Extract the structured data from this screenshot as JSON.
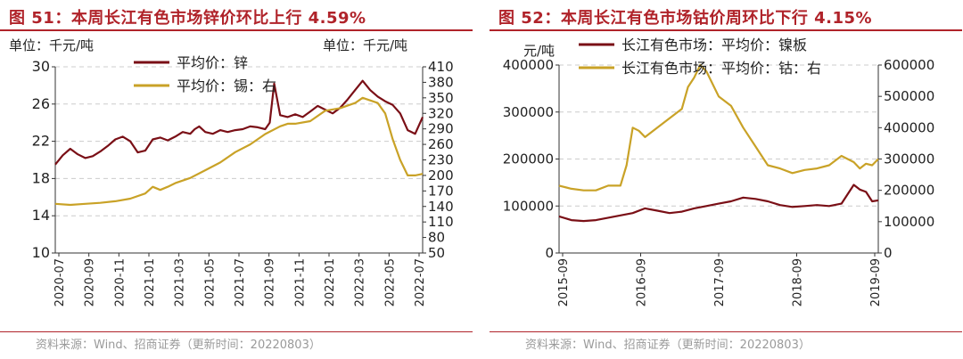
{
  "left": {
    "title": "图 51：本周长江有色市场锌价环比上行 4.59%",
    "unit_left": "单位：千元/吨",
    "unit_right": "单位：千元/吨",
    "source": "资料来源：Wind、招商证券（更新时间：20220803）"
  },
  "right": {
    "title": "图 52：本周长江有色市场钴价周环比下行 4.15%",
    "unit_left": "元/吨",
    "source": "资料来源：Wind、招商证券（更新时间：20220803）"
  },
  "colors": {
    "dark": "#7a0f16",
    "gold": "#c9a227",
    "title": "#b0232a"
  },
  "chart_data": [
    {
      "type": "line",
      "x_ticks": [
        "2020-07",
        "2020-09",
        "2020-11",
        "2021-01",
        "2021-03",
        "2021-05",
        "2021-07",
        "2021-09",
        "2021-11",
        "2022-01",
        "2022-03",
        "2022-05",
        "2022-07"
      ],
      "y_left": {
        "range": [
          10,
          30
        ],
        "ticks": [
          10,
          14,
          18,
          22,
          26,
          30
        ]
      },
      "y_right": {
        "range": [
          50,
          410
        ],
        "ticks": [
          50,
          80,
          110,
          140,
          170,
          200,
          230,
          260,
          290,
          320,
          350,
          380,
          410
        ]
      },
      "legend_position": "top-left",
      "series": [
        {
          "name": "平均价：锌",
          "axis": "left",
          "color": "#7a0f16",
          "x": [
            0,
            0.5,
            1,
            1.5,
            2,
            2.5,
            3,
            3.5,
            4,
            4.5,
            5,
            5.5,
            6,
            6.5,
            7,
            7.5,
            8,
            8.5,
            9,
            9.3,
            9.6,
            10,
            10.5,
            11,
            11.5,
            12,
            12.5,
            13,
            13.5,
            14,
            14.3,
            14.6,
            15,
            15.5,
            16,
            16.5,
            17,
            17.5,
            18,
            18.5,
            19,
            19.5,
            20,
            20.5,
            21,
            21.5,
            22,
            22.5,
            23,
            23.5,
            24,
            24.5
          ],
          "y": [
            19.5,
            20.5,
            21.2,
            20.6,
            20.2,
            20.4,
            20.9,
            21.5,
            22.2,
            22.5,
            22.0,
            20.8,
            21.0,
            22.2,
            22.4,
            22.1,
            22.5,
            23.0,
            22.8,
            23.3,
            23.6,
            23.0,
            22.8,
            23.2,
            23.0,
            23.2,
            23.3,
            23.6,
            23.5,
            23.3,
            24.0,
            28.2,
            24.8,
            24.6,
            24.9,
            24.6,
            25.2,
            25.8,
            25.4,
            25.0,
            25.6,
            26.5,
            27.5,
            28.5,
            27.5,
            26.8,
            26.3,
            25.9,
            25.0,
            23.2,
            22.8,
            24.6
          ]
        },
        {
          "name": "平均价：锡：右",
          "axis": "right",
          "color": "#c9a227",
          "x": [
            0,
            1,
            2,
            3,
            4,
            5,
            6,
            6.5,
            7,
            7.5,
            8,
            9,
            10,
            11,
            12,
            13,
            14,
            15,
            15.5,
            16,
            17,
            18,
            19,
            20,
            20.5,
            21,
            21.5,
            22,
            22.5,
            23,
            23.5,
            24,
            24.5
          ],
          "y": [
            145,
            143,
            145,
            147,
            150,
            155,
            165,
            178,
            172,
            178,
            185,
            195,
            210,
            225,
            245,
            260,
            280,
            295,
            300,
            300,
            305,
            325,
            330,
            340,
            350,
            345,
            340,
            320,
            270,
            230,
            200,
            200,
            203
          ]
        }
      ]
    },
    {
      "type": "line",
      "x_ticks": [
        "2015-09",
        "2016-09",
        "2017-09",
        "2018-09",
        "2019-09"
      ],
      "y_left": {
        "range": [
          0,
          400000
        ],
        "ticks": [
          0,
          100000,
          200000,
          300000,
          400000
        ]
      },
      "y_right": {
        "range": [
          0,
          600000
        ],
        "ticks": [
          0,
          100000,
          200000,
          300000,
          400000,
          500000,
          600000
        ]
      },
      "legend_position": "top-left",
      "series": [
        {
          "name": "长江有色市场：平均价：镍板",
          "axis": "left",
          "color": "#7a0f16",
          "x": [
            0,
            2,
            4,
            6,
            8,
            10,
            12,
            14,
            16,
            18,
            20,
            22,
            24,
            26,
            28,
            30,
            32,
            34,
            36,
            38,
            40,
            42,
            44,
            46,
            48,
            49,
            50,
            51,
            52
          ],
          "y": [
            78000,
            70000,
            68000,
            70000,
            75000,
            80000,
            85000,
            95000,
            90000,
            85000,
            88000,
            95000,
            100000,
            105000,
            110000,
            118000,
            115000,
            110000,
            102000,
            98000,
            100000,
            102000,
            100000,
            105000,
            145000,
            135000,
            130000,
            110000,
            112000
          ]
        },
        {
          "name": "长江有色市场：平均价：钴：右",
          "axis": "right",
          "color": "#c9a227",
          "x": [
            0,
            2,
            4,
            6,
            8,
            10,
            11,
            12,
            13,
            14,
            16,
            18,
            20,
            21,
            22,
            23,
            24,
            25,
            26,
            28,
            30,
            32,
            34,
            36,
            38,
            40,
            42,
            44,
            46,
            48,
            49,
            50,
            51,
            52
          ],
          "y": [
            215000,
            205000,
            200000,
            200000,
            215000,
            215000,
            280000,
            400000,
            390000,
            370000,
            400000,
            430000,
            460000,
            530000,
            560000,
            600000,
            580000,
            540000,
            500000,
            470000,
            400000,
            340000,
            280000,
            270000,
            255000,
            265000,
            270000,
            280000,
            310000,
            290000,
            270000,
            285000,
            280000,
            300000
          ]
        }
      ]
    }
  ]
}
